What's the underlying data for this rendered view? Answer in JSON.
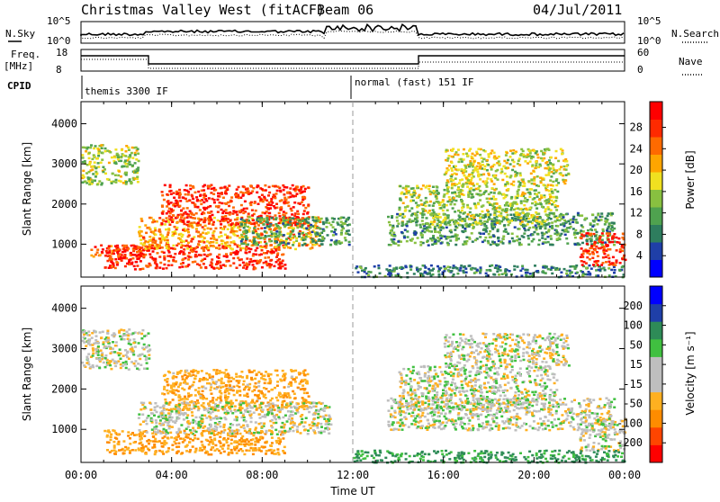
{
  "header": {
    "title": "Christmas Valley West (fitACF)",
    "beam": "Beam 06",
    "date": "04/Jul/2011"
  },
  "top_panels": {
    "noise": {
      "left_label": "N.Sky",
      "left_ticks": [
        "10^5",
        "10^0"
      ],
      "right_label": "N.Search",
      "right_ticks": [
        "10^5",
        "10^0"
      ]
    },
    "freq": {
      "left_label_1": "Freq.",
      "left_label_2": "[MHz]",
      "left_ticks": [
        "18",
        "8"
      ],
      "right_label": "Nave",
      "right_ticks": [
        "60",
        "0"
      ]
    },
    "cpid": {
      "label": "CPID",
      "segment_1": "themis 3300 IF",
      "segment_2": "normal (fast) 151 IF"
    }
  },
  "colors": {
    "power_scale": [
      "#0000ff",
      "#1f3fa8",
      "#2e7d5e",
      "#4fa24f",
      "#88c040",
      "#f0e020",
      "#ffa500",
      "#ff6a00",
      "#ff2a00",
      "#ff0000"
    ],
    "velocity_scale": [
      "#ff0000",
      "#ff4500",
      "#ff8c00",
      "#ffb020",
      "#bebebe",
      "#bebebe",
      "#40c040",
      "#2e8b57",
      "#1f3fa8",
      "#0000ff"
    ],
    "frame": "#000000"
  },
  "chart_data": [
    {
      "type": "heatmap",
      "name": "power",
      "ylabel": "Slant Range [km]",
      "xlabel": "Time UT",
      "x_ticks": [
        "00:00",
        "04:00",
        "08:00",
        "12:00",
        "16:00",
        "20:00",
        "00:00"
      ],
      "x_range_hours": [
        0,
        24
      ],
      "y_ticks": [
        "1000",
        "2000",
        "3000",
        "4000"
      ],
      "ylim": [
        180,
        4550
      ],
      "colorbar": {
        "label": "Power [dB]",
        "ticks": [
          "4",
          "8",
          "12",
          "16",
          "20",
          "24",
          "28"
        ],
        "range": [
          0,
          30
        ]
      },
      "echo_regions": [
        {
          "t0": 0.4,
          "t1": 3.0,
          "r0": 700,
          "r1": 1000,
          "value": 24
        },
        {
          "t0": 1.0,
          "t1": 9.0,
          "r0": 400,
          "r1": 1000,
          "value": 26
        },
        {
          "t0": 2.5,
          "t1": 10.5,
          "r0": 900,
          "r1": 1700,
          "value": 20
        },
        {
          "t0": 3.5,
          "t1": 10.0,
          "r0": 1500,
          "r1": 2500,
          "value": 26
        },
        {
          "t0": 7.0,
          "t1": 11.8,
          "r0": 1000,
          "r1": 1700,
          "value": 10
        },
        {
          "t0": 0.0,
          "t1": 2.5,
          "r0": 2500,
          "r1": 3500,
          "value": 14
        },
        {
          "t0": 12.0,
          "t1": 24.0,
          "r0": 200,
          "r1": 500,
          "value": 8
        },
        {
          "t0": 13.5,
          "t1": 23.5,
          "r0": 1000,
          "r1": 1800,
          "value": 10
        },
        {
          "t0": 14.0,
          "t1": 21.0,
          "r0": 1500,
          "r1": 2500,
          "value": 14
        },
        {
          "t0": 16.0,
          "t1": 21.5,
          "r0": 2500,
          "r1": 3400,
          "value": 16
        },
        {
          "t0": 22.0,
          "t1": 24.0,
          "r0": 500,
          "r1": 1300,
          "value": 26
        }
      ]
    },
    {
      "type": "heatmap",
      "name": "velocity",
      "ylabel": "Slant Range [km]",
      "xlabel": "Time UT",
      "x_ticks": [
        "00:00",
        "04:00",
        "08:00",
        "12:00",
        "16:00",
        "20:00",
        "00:00"
      ],
      "x_range_hours": [
        0,
        24
      ],
      "y_ticks": [
        "1000",
        "2000",
        "3000",
        "4000"
      ],
      "ylim": [
        180,
        4550
      ],
      "colorbar": {
        "label": "Velocity [m s⁻¹]",
        "ticks": [
          "200",
          "100",
          "50",
          "15",
          "-15",
          "-50",
          "-100",
          "-200"
        ]
      },
      "echo_regions": [
        {
          "t0": 1.0,
          "t1": 9.0,
          "r0": 400,
          "r1": 1000,
          "value": -50
        },
        {
          "t0": 3.5,
          "t1": 10.0,
          "r0": 1500,
          "r1": 2500,
          "value": -40
        },
        {
          "t0": 2.5,
          "t1": 11.0,
          "r0": 900,
          "r1": 1700,
          "value": 0
        },
        {
          "t0": 0.0,
          "t1": 3.0,
          "r0": 2500,
          "r1": 3500,
          "value": 0
        },
        {
          "t0": 13.5,
          "t1": 23.5,
          "r0": 1000,
          "r1": 1800,
          "value": 0
        },
        {
          "t0": 14.0,
          "t1": 21.0,
          "r0": 1500,
          "r1": 2600,
          "value": 0
        },
        {
          "t0": 16.0,
          "t1": 21.5,
          "r0": 2600,
          "r1": 3400,
          "value": 0
        },
        {
          "t0": 22.0,
          "t1": 24.0,
          "r0": 500,
          "r1": 1300,
          "value": 0
        },
        {
          "t0": 12.0,
          "t1": 24.0,
          "r0": 200,
          "r1": 500,
          "value": 60
        }
      ]
    }
  ]
}
